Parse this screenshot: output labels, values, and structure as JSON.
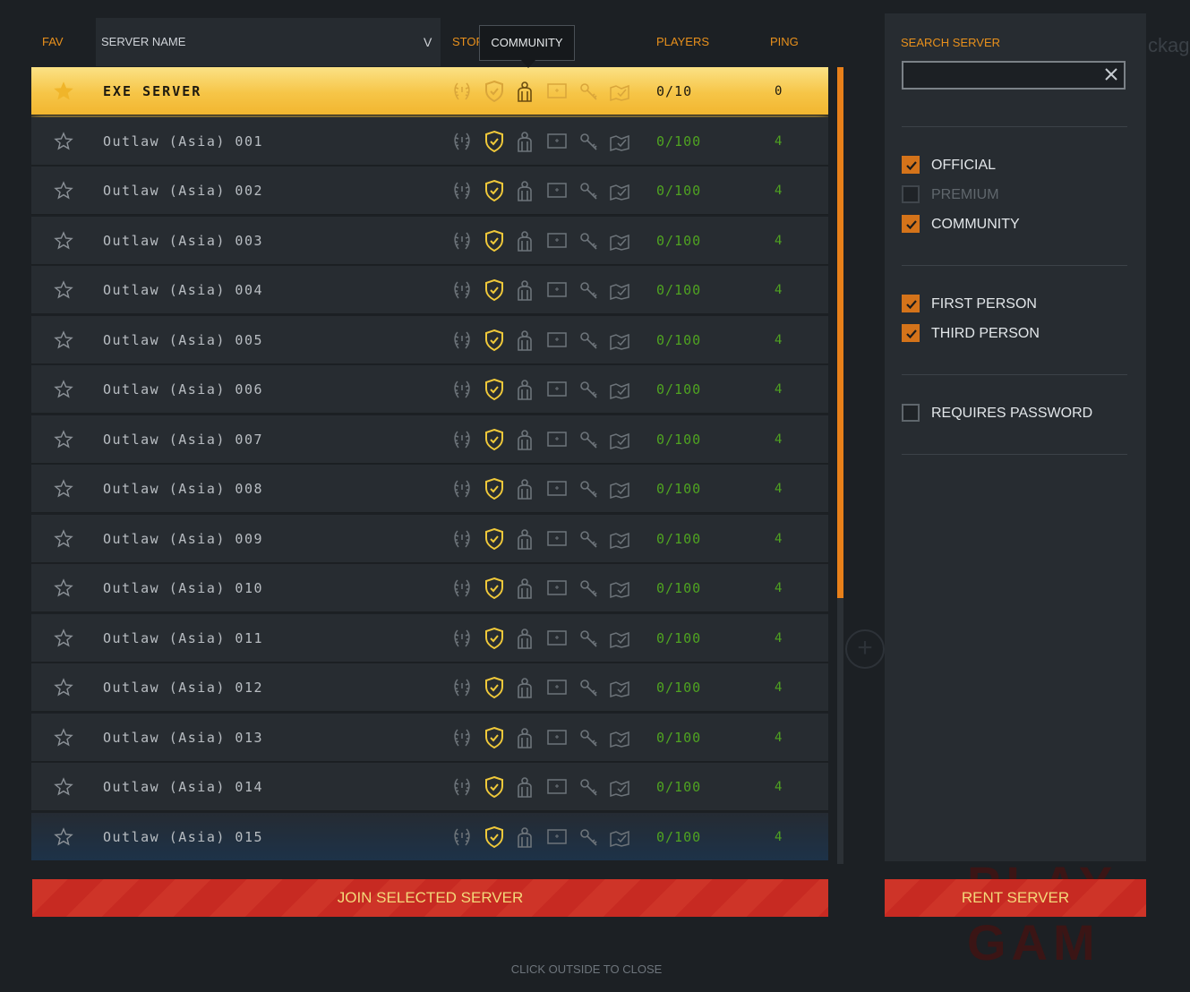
{
  "header": {
    "fav": "FAV",
    "server_name": "SERVER NAME",
    "sort_icon": "V",
    "stor": "STOR",
    "players": "PLAYERS",
    "ping": "PING"
  },
  "tooltip": "COMMUNITY",
  "servers": [
    {
      "name": "EXE SERVER",
      "players": "0/10",
      "ping": "0",
      "selected": true
    },
    {
      "name": "Outlaw (Asia) 001",
      "players": "0/100",
      "ping": "4"
    },
    {
      "name": "Outlaw (Asia) 002",
      "players": "0/100",
      "ping": "4"
    },
    {
      "name": "Outlaw (Asia) 003",
      "players": "0/100",
      "ping": "4"
    },
    {
      "name": "Outlaw (Asia) 004",
      "players": "0/100",
      "ping": "4"
    },
    {
      "name": "Outlaw (Asia) 005",
      "players": "0/100",
      "ping": "4"
    },
    {
      "name": "Outlaw (Asia) 006",
      "players": "0/100",
      "ping": "4"
    },
    {
      "name": "Outlaw (Asia) 007",
      "players": "0/100",
      "ping": "4"
    },
    {
      "name": "Outlaw (Asia) 008",
      "players": "0/100",
      "ping": "4"
    },
    {
      "name": "Outlaw (Asia) 009",
      "players": "0/100",
      "ping": "4"
    },
    {
      "name": "Outlaw (Asia) 010",
      "players": "0/100",
      "ping": "4"
    },
    {
      "name": "Outlaw (Asia) 011",
      "players": "0/100",
      "ping": "4"
    },
    {
      "name": "Outlaw (Asia) 012",
      "players": "0/100",
      "ping": "4"
    },
    {
      "name": "Outlaw (Asia) 013",
      "players": "0/100",
      "ping": "4"
    },
    {
      "name": "Outlaw (Asia) 014",
      "players": "0/100",
      "ping": "4"
    },
    {
      "name": "Outlaw (Asia) 015",
      "players": "0/100",
      "ping": "4"
    }
  ],
  "row_icons": [
    "laurel-icon",
    "shield-icon",
    "community-icon",
    "screen-icon",
    "key-icon",
    "map-icon"
  ],
  "colors": {
    "accent": "#e8901c",
    "players_green": "#4fa321",
    "selected_row": "#f6c547",
    "button_red": "#c72a22"
  },
  "buttons": {
    "join": "JOIN SELECTED SERVER",
    "rent": "RENT SERVER"
  },
  "close_hint": "CLICK OUTSIDE TO CLOSE",
  "filters": {
    "search_label": "SEARCH SERVER",
    "search_value": "",
    "official": {
      "label": "OFFICIAL",
      "checked": true
    },
    "premium": {
      "label": "PREMIUM",
      "checked": false,
      "disabled": true
    },
    "community": {
      "label": "COMMUNITY",
      "checked": true
    },
    "first_person": {
      "label": "FIRST PERSON",
      "checked": true
    },
    "third_person": {
      "label": "THIRD PERSON",
      "checked": true
    },
    "requires_password": {
      "label": "REQUIRES PASSWORD",
      "checked": false
    }
  }
}
